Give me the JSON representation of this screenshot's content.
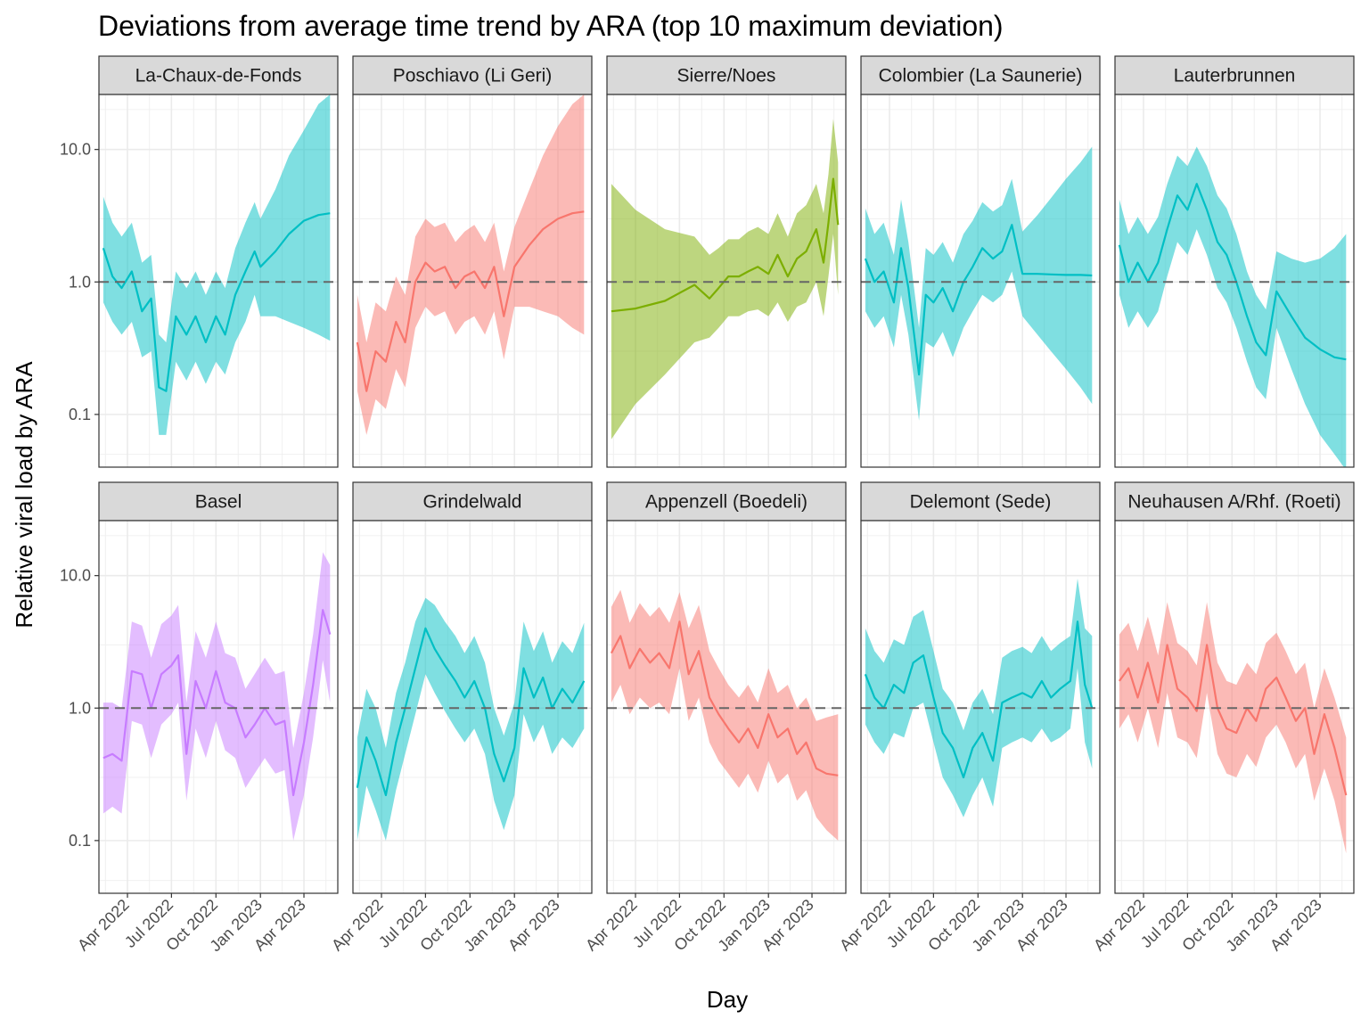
{
  "chart_data": {
    "type": "line",
    "title": "Deviations from average time trend by ARA (top 10 maximum deviation)",
    "xlabel": "Day",
    "ylabel": "Relative viral load by ARA",
    "y_scale": "log10",
    "ylim": [
      0.04,
      26
    ],
    "y_ticks": [
      0.1,
      1.0,
      10.0
    ],
    "y_tick_labels": [
      "0.1",
      "1.0",
      "10.0"
    ],
    "xlim": [
      "2022-02-01",
      "2023-06-10"
    ],
    "x_ticks": [
      "2022-04-01",
      "2022-07-01",
      "2022-10-01",
      "2023-01-01",
      "2023-04-01"
    ],
    "x_tick_labels": [
      "Apr 2022",
      "Jul 2022",
      "Oct 2022",
      "Jan 2023",
      "Apr 2023"
    ],
    "reference_line": 1.0,
    "grid": true,
    "layout": "facet grid 2 rows x 5 columns",
    "colors": {
      "teal": "#00BFC4",
      "red": "#F8766D",
      "green": "#7CAE00",
      "purple": "#C77CFF"
    },
    "series": [
      {
        "name": "La-Chaux-de-Fonds",
        "color": "#00BFC4",
        "x": [
          "2022-02-10",
          "2022-03-01",
          "2022-03-20",
          "2022-04-10",
          "2022-05-01",
          "2022-05-20",
          "2022-06-05",
          "2022-06-20",
          "2022-07-10",
          "2022-08-01",
          "2022-08-20",
          "2022-09-10",
          "2022-10-01",
          "2022-10-20",
          "2022-11-10",
          "2022-12-01",
          "2022-12-20",
          "2023-01-01",
          "2023-02-01",
          "2023-03-01",
          "2023-04-01",
          "2023-05-01",
          "2023-05-25"
        ],
        "y": [
          1.8,
          1.1,
          0.9,
          1.2,
          0.6,
          0.75,
          0.16,
          0.15,
          0.55,
          0.4,
          0.55,
          0.35,
          0.55,
          0.4,
          0.8,
          1.2,
          1.7,
          1.3,
          1.7,
          2.3,
          2.9,
          3.2,
          3.3
        ],
        "lower": [
          0.7,
          0.5,
          0.4,
          0.5,
          0.27,
          0.3,
          0.07,
          0.07,
          0.25,
          0.18,
          0.25,
          0.17,
          0.25,
          0.2,
          0.35,
          0.5,
          0.8,
          0.55,
          0.55,
          0.5,
          0.45,
          0.4,
          0.36
        ],
        "upper": [
          4.4,
          2.8,
          2.2,
          2.8,
          1.4,
          1.6,
          0.4,
          0.35,
          1.2,
          0.9,
          1.2,
          0.8,
          1.2,
          0.9,
          1.8,
          2.8,
          4.0,
          3.0,
          5.0,
          9.0,
          14.0,
          22.0,
          26.0
        ]
      },
      {
        "name": "Poschiavo (Li Geri)",
        "color": "#F8766D",
        "x": [
          "2022-02-10",
          "2022-03-01",
          "2022-03-20",
          "2022-04-10",
          "2022-05-01",
          "2022-05-20",
          "2022-06-10",
          "2022-07-01",
          "2022-07-20",
          "2022-08-10",
          "2022-09-01",
          "2022-09-20",
          "2022-10-10",
          "2022-11-01",
          "2022-11-20",
          "2022-12-10",
          "2023-01-01",
          "2023-02-01",
          "2023-03-01",
          "2023-04-01",
          "2023-05-01",
          "2023-05-25"
        ],
        "y": [
          0.35,
          0.15,
          0.3,
          0.25,
          0.5,
          0.35,
          1.0,
          1.4,
          1.2,
          1.3,
          0.9,
          1.1,
          1.2,
          0.9,
          1.3,
          0.55,
          1.3,
          1.9,
          2.5,
          3.0,
          3.3,
          3.4
        ],
        "lower": [
          0.15,
          0.07,
          0.13,
          0.11,
          0.22,
          0.16,
          0.45,
          0.65,
          0.55,
          0.6,
          0.4,
          0.5,
          0.55,
          0.4,
          0.6,
          0.26,
          0.65,
          0.65,
          0.6,
          0.55,
          0.45,
          0.4
        ],
        "upper": [
          0.8,
          0.35,
          0.7,
          0.6,
          1.1,
          0.8,
          2.2,
          3.0,
          2.6,
          2.8,
          2.0,
          2.4,
          2.7,
          2.0,
          2.8,
          1.2,
          2.6,
          5.0,
          9.0,
          15.0,
          22.0,
          26.0
        ]
      },
      {
        "name": "Sierre/Noes",
        "color": "#7CAE00",
        "x": [
          "2022-02-10",
          "2022-04-01",
          "2022-06-01",
          "2022-08-01",
          "2022-09-01",
          "2022-09-20",
          "2022-10-10",
          "2022-11-01",
          "2022-11-20",
          "2022-12-10",
          "2023-01-01",
          "2023-01-20",
          "2023-02-10",
          "2023-03-01",
          "2023-03-20",
          "2023-04-10",
          "2023-04-25",
          "2023-05-05",
          "2023-05-15",
          "2023-05-25"
        ],
        "y": [
          0.6,
          0.63,
          0.72,
          0.95,
          0.75,
          0.9,
          1.1,
          1.1,
          1.2,
          1.3,
          1.15,
          1.6,
          1.1,
          1.5,
          1.7,
          2.5,
          1.4,
          2.8,
          6.0,
          2.7
        ],
        "lower": [
          0.065,
          0.12,
          0.2,
          0.35,
          0.38,
          0.45,
          0.55,
          0.55,
          0.6,
          0.62,
          0.55,
          0.7,
          0.5,
          0.65,
          0.7,
          1.0,
          0.55,
          1.1,
          2.3,
          0.8
        ],
        "upper": [
          5.5,
          3.5,
          2.5,
          2.2,
          1.6,
          1.8,
          2.1,
          2.1,
          2.4,
          2.6,
          2.3,
          3.3,
          2.2,
          3.3,
          3.8,
          5.5,
          3.3,
          6.5,
          17.0,
          8.0
        ]
      },
      {
        "name": "Colombier (La Saunerie)",
        "color": "#00BFC4",
        "x": [
          "2022-02-10",
          "2022-03-01",
          "2022-03-20",
          "2022-04-10",
          "2022-04-25",
          "2022-05-10",
          "2022-06-01",
          "2022-06-15",
          "2022-07-01",
          "2022-07-20",
          "2022-08-10",
          "2022-09-01",
          "2022-09-20",
          "2022-10-10",
          "2022-11-01",
          "2022-11-20",
          "2022-12-10",
          "2023-01-01",
          "2023-02-01",
          "2023-03-01",
          "2023-04-01",
          "2023-05-01",
          "2023-05-25"
        ],
        "y": [
          1.5,
          1.0,
          1.2,
          0.7,
          1.8,
          0.9,
          0.2,
          0.8,
          0.7,
          0.9,
          0.6,
          1.0,
          1.3,
          1.8,
          1.5,
          1.7,
          2.7,
          1.15,
          1.15,
          1.14,
          1.13,
          1.13,
          1.12
        ],
        "lower": [
          0.6,
          0.45,
          0.55,
          0.32,
          0.8,
          0.4,
          0.09,
          0.35,
          0.32,
          0.42,
          0.27,
          0.45,
          0.6,
          0.8,
          0.7,
          0.8,
          1.2,
          0.55,
          0.4,
          0.3,
          0.22,
          0.16,
          0.12
        ],
        "upper": [
          3.6,
          2.3,
          2.8,
          1.6,
          4.2,
          2.0,
          0.45,
          1.8,
          1.6,
          2.0,
          1.4,
          2.3,
          2.9,
          4.0,
          3.4,
          3.8,
          6.0,
          2.4,
          3.2,
          4.3,
          6.0,
          8.0,
          10.5
        ]
      },
      {
        "name": "Lauterbrunnen",
        "color": "#00BFC4",
        "x": [
          "2022-02-10",
          "2022-03-01",
          "2022-03-20",
          "2022-04-10",
          "2022-05-01",
          "2022-05-20",
          "2022-06-10",
          "2022-07-01",
          "2022-07-20",
          "2022-08-10",
          "2022-09-01",
          "2022-09-20",
          "2022-10-10",
          "2022-11-01",
          "2022-11-20",
          "2022-12-10",
          "2023-01-01",
          "2023-02-01",
          "2023-03-01",
          "2023-04-01",
          "2023-05-01",
          "2023-05-25"
        ],
        "y": [
          1.9,
          1.0,
          1.4,
          1.0,
          1.4,
          2.5,
          4.5,
          3.5,
          5.5,
          3.5,
          2.0,
          1.6,
          1.0,
          0.55,
          0.35,
          0.28,
          0.85,
          0.55,
          0.38,
          0.31,
          0.27,
          0.26
        ],
        "lower": [
          0.8,
          0.45,
          0.6,
          0.45,
          0.6,
          1.1,
          2.0,
          1.6,
          2.5,
          1.6,
          0.9,
          0.7,
          0.45,
          0.25,
          0.16,
          0.13,
          0.45,
          0.22,
          0.12,
          0.07,
          0.05,
          0.038
        ],
        "upper": [
          4.2,
          2.3,
          3.1,
          2.3,
          3.1,
          5.5,
          9.0,
          7.5,
          10.5,
          7.5,
          4.5,
          3.6,
          2.3,
          1.2,
          0.8,
          0.62,
          1.7,
          1.5,
          1.4,
          1.5,
          1.8,
          2.3
        ]
      },
      {
        "name": "Basel",
        "color": "#C77CFF",
        "x": [
          "2022-02-10",
          "2022-03-01",
          "2022-03-20",
          "2022-04-10",
          "2022-05-01",
          "2022-05-20",
          "2022-06-10",
          "2022-07-01",
          "2022-07-15",
          "2022-08-01",
          "2022-08-20",
          "2022-09-10",
          "2022-10-01",
          "2022-10-20",
          "2022-11-10",
          "2022-12-01",
          "2022-12-20",
          "2023-01-10",
          "2023-02-01",
          "2023-02-20",
          "2023-03-10",
          "2023-04-01",
          "2023-04-20",
          "2023-05-10",
          "2023-05-25"
        ],
        "y": [
          0.42,
          0.45,
          0.4,
          1.9,
          1.8,
          1.0,
          1.8,
          2.1,
          2.5,
          0.45,
          1.6,
          1.0,
          1.9,
          1.1,
          1.0,
          0.6,
          0.75,
          1.0,
          0.75,
          0.8,
          0.22,
          0.55,
          1.5,
          5.5,
          3.6
        ],
        "lower": [
          0.16,
          0.18,
          0.16,
          0.8,
          0.75,
          0.42,
          0.75,
          0.9,
          1.1,
          0.2,
          0.7,
          0.42,
          0.8,
          0.48,
          0.42,
          0.25,
          0.32,
          0.42,
          0.32,
          0.34,
          0.1,
          0.22,
          0.6,
          2.3,
          1.1
        ],
        "upper": [
          1.1,
          1.1,
          1.0,
          4.5,
          4.2,
          2.4,
          4.3,
          5.0,
          6.0,
          1.1,
          3.8,
          2.4,
          4.5,
          2.6,
          2.4,
          1.4,
          1.8,
          2.4,
          1.8,
          1.9,
          0.5,
          1.3,
          3.6,
          15.0,
          12.0
        ]
      },
      {
        "name": "Grindelwald",
        "color": "#00BFC4",
        "x": [
          "2022-02-10",
          "2022-03-01",
          "2022-03-20",
          "2022-04-10",
          "2022-05-01",
          "2022-05-20",
          "2022-06-10",
          "2022-07-01",
          "2022-07-20",
          "2022-08-10",
          "2022-09-01",
          "2022-09-20",
          "2022-10-10",
          "2022-11-01",
          "2022-11-20",
          "2022-12-10",
          "2023-01-01",
          "2023-01-20",
          "2023-02-10",
          "2023-03-01",
          "2023-03-20",
          "2023-04-10",
          "2023-05-01",
          "2023-05-25"
        ],
        "y": [
          0.25,
          0.6,
          0.4,
          0.22,
          0.55,
          1.0,
          2.0,
          4.0,
          2.8,
          2.1,
          1.6,
          1.2,
          1.6,
          1.0,
          0.45,
          0.28,
          0.5,
          2.0,
          1.2,
          1.7,
          1.0,
          1.4,
          1.1,
          1.6
        ],
        "lower": [
          0.1,
          0.26,
          0.17,
          0.1,
          0.24,
          0.45,
          0.9,
          1.8,
          1.3,
          0.95,
          0.7,
          0.55,
          0.7,
          0.45,
          0.2,
          0.12,
          0.22,
          0.9,
          0.55,
          0.75,
          0.45,
          0.6,
          0.5,
          0.7
        ],
        "upper": [
          0.6,
          1.4,
          1.0,
          0.5,
          1.3,
          2.2,
          4.5,
          6.8,
          6.0,
          4.5,
          3.5,
          2.6,
          3.5,
          2.2,
          1.0,
          0.62,
          1.1,
          4.5,
          2.7,
          3.8,
          2.2,
          3.2,
          2.6,
          4.4
        ]
      },
      {
        "name": "Appenzell (Boedeli)",
        "color": "#F8766D",
        "x": [
          "2022-02-10",
          "2022-03-01",
          "2022-03-20",
          "2022-04-10",
          "2022-05-01",
          "2022-05-20",
          "2022-06-10",
          "2022-07-01",
          "2022-07-20",
          "2022-08-10",
          "2022-09-01",
          "2022-09-20",
          "2022-10-10",
          "2022-11-01",
          "2022-11-20",
          "2022-12-10",
          "2023-01-01",
          "2023-01-20",
          "2023-02-10",
          "2023-03-01",
          "2023-03-20",
          "2023-04-10",
          "2023-05-01",
          "2023-05-25"
        ],
        "y": [
          2.6,
          3.5,
          2.0,
          2.8,
          2.2,
          2.6,
          2.0,
          4.5,
          1.8,
          2.7,
          1.2,
          0.9,
          0.7,
          0.55,
          0.7,
          0.5,
          0.9,
          0.6,
          0.7,
          0.45,
          0.55,
          0.35,
          0.32,
          0.31
        ],
        "lower": [
          1.1,
          1.5,
          0.9,
          1.2,
          1.0,
          1.1,
          0.9,
          2.0,
          0.8,
          1.2,
          0.55,
          0.4,
          0.32,
          0.25,
          0.32,
          0.23,
          0.4,
          0.27,
          0.32,
          0.2,
          0.24,
          0.15,
          0.12,
          0.1
        ],
        "upper": [
          5.8,
          7.8,
          4.4,
          6.2,
          4.9,
          5.8,
          4.4,
          7.5,
          4.0,
          6.0,
          2.7,
          2.0,
          1.5,
          1.2,
          1.5,
          1.1,
          2.0,
          1.3,
          1.5,
          1.0,
          1.2,
          0.8,
          0.85,
          0.9
        ]
      },
      {
        "name": "Delemont (Sede)",
        "color": "#00BFC4",
        "x": [
          "2022-02-10",
          "2022-03-01",
          "2022-03-20",
          "2022-04-10",
          "2022-05-01",
          "2022-05-20",
          "2022-06-10",
          "2022-07-01",
          "2022-07-20",
          "2022-08-10",
          "2022-09-01",
          "2022-09-20",
          "2022-10-10",
          "2022-11-01",
          "2022-11-20",
          "2022-12-10",
          "2023-01-01",
          "2023-01-20",
          "2023-02-10",
          "2023-03-01",
          "2023-03-20",
          "2023-04-10",
          "2023-04-25",
          "2023-05-10",
          "2023-05-25"
        ],
        "y": [
          1.8,
          1.2,
          1.0,
          1.5,
          1.3,
          2.2,
          2.5,
          1.2,
          0.65,
          0.5,
          0.3,
          0.5,
          0.65,
          0.4,
          1.1,
          1.2,
          1.3,
          1.2,
          1.6,
          1.2,
          1.4,
          1.6,
          4.5,
          1.5,
          1.0
        ],
        "lower": [
          0.75,
          0.55,
          0.45,
          0.65,
          0.6,
          1.0,
          1.1,
          0.55,
          0.3,
          0.22,
          0.15,
          0.22,
          0.3,
          0.18,
          0.5,
          0.55,
          0.6,
          0.55,
          0.7,
          0.55,
          0.6,
          0.7,
          2.0,
          0.55,
          0.35
        ],
        "upper": [
          4.0,
          2.7,
          2.2,
          3.3,
          3.0,
          4.9,
          5.5,
          2.7,
          1.4,
          1.1,
          0.68,
          1.1,
          1.4,
          0.9,
          2.4,
          2.7,
          2.9,
          2.6,
          3.5,
          2.7,
          3.1,
          3.5,
          9.5,
          4.0,
          3.5
        ]
      },
      {
        "name": "Neuhausen A/Rhf. (Roeti)",
        "color": "#F8766D",
        "x": [
          "2022-02-10",
          "2022-03-01",
          "2022-03-20",
          "2022-04-10",
          "2022-05-01",
          "2022-05-20",
          "2022-06-10",
          "2022-07-01",
          "2022-07-20",
          "2022-08-10",
          "2022-09-01",
          "2022-09-20",
          "2022-10-10",
          "2022-11-01",
          "2022-11-20",
          "2022-12-10",
          "2023-01-01",
          "2023-01-20",
          "2023-02-10",
          "2023-03-01",
          "2023-03-20",
          "2023-04-10",
          "2023-05-01",
          "2023-05-25"
        ],
        "y": [
          1.6,
          2.0,
          1.2,
          2.2,
          1.1,
          3.0,
          1.4,
          1.2,
          0.95,
          3.0,
          1.0,
          0.7,
          0.65,
          1.0,
          0.8,
          1.4,
          1.7,
          1.2,
          0.8,
          1.0,
          0.45,
          0.9,
          0.5,
          0.22
        ],
        "lower": [
          0.7,
          0.9,
          0.55,
          1.0,
          0.5,
          1.3,
          0.6,
          0.55,
          0.42,
          1.3,
          0.45,
          0.32,
          0.3,
          0.45,
          0.36,
          0.6,
          0.75,
          0.55,
          0.35,
          0.45,
          0.2,
          0.35,
          0.2,
          0.08
        ],
        "upper": [
          3.6,
          4.4,
          2.7,
          4.9,
          2.5,
          6.3,
          3.1,
          2.7,
          2.1,
          6.3,
          2.2,
          1.6,
          1.5,
          2.2,
          1.8,
          3.1,
          3.7,
          2.7,
          1.8,
          2.2,
          1.0,
          2.0,
          1.2,
          0.6
        ]
      }
    ]
  }
}
